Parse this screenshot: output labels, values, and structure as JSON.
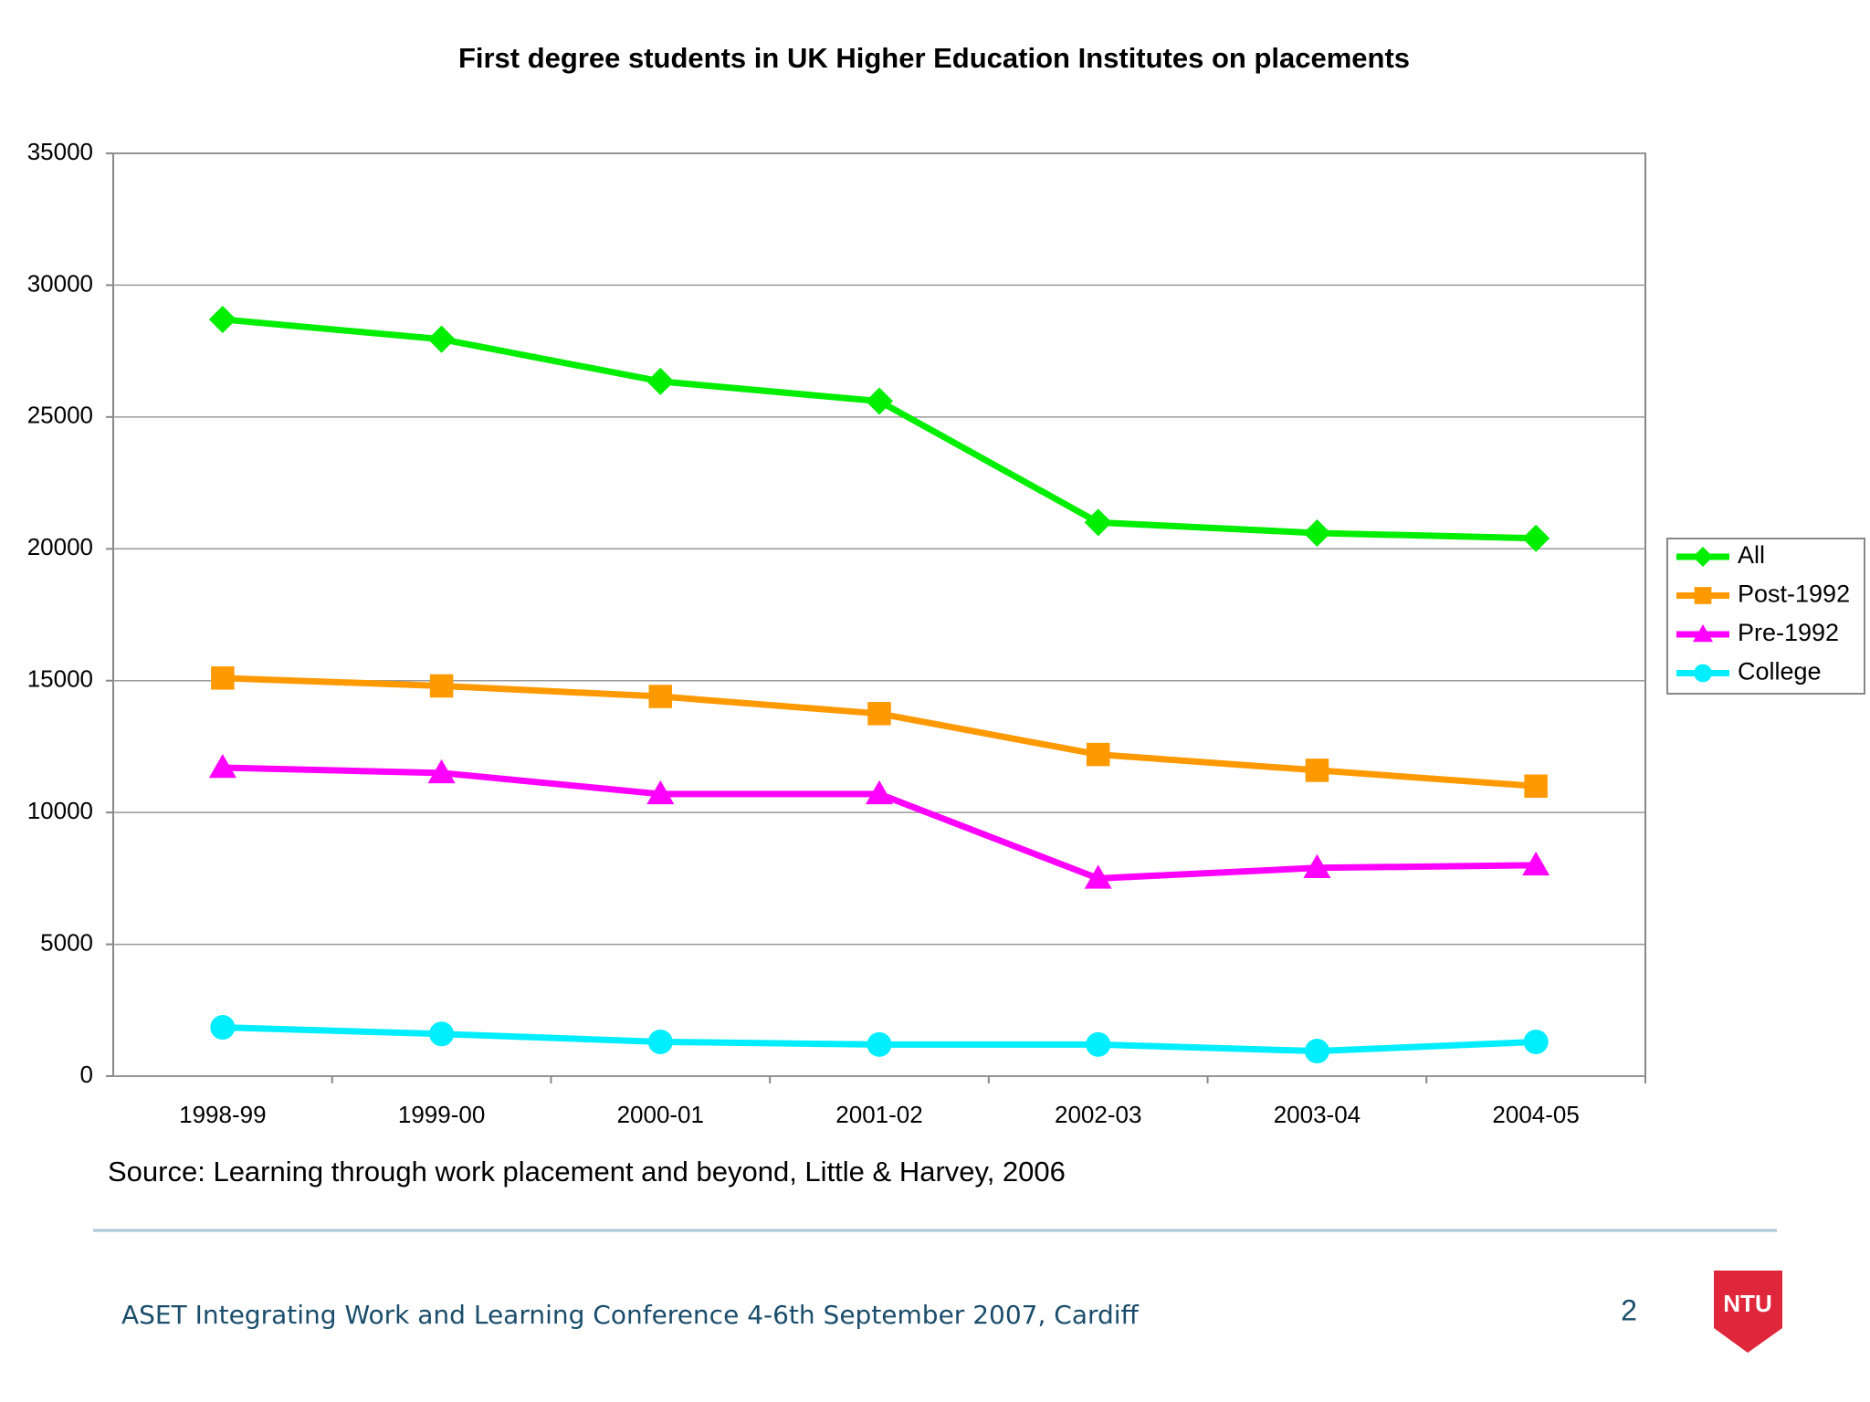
{
  "chart_data": {
    "type": "line",
    "title": "First degree students in UK Higher Education Institutes on placements",
    "categories": [
      "1998-99",
      "1999-00",
      "2000-01",
      "2001-02",
      "2002-03",
      "2003-04",
      "2004-05"
    ],
    "series": [
      {
        "name": "All",
        "color": "#00ee00",
        "marker": "diamond",
        "values": [
          28700,
          27950,
          26350,
          25600,
          21000,
          20600,
          20400
        ]
      },
      {
        "name": "Post-1992",
        "color": "#ff9900",
        "marker": "square",
        "values": [
          15100,
          14800,
          14400,
          13750,
          12200,
          11600,
          11000
        ]
      },
      {
        "name": "Pre-1992",
        "color": "#ff00ff",
        "marker": "triangle",
        "values": [
          11700,
          11500,
          10700,
          10700,
          7500,
          7900,
          8000
        ]
      },
      {
        "name": "College",
        "color": "#00eeff",
        "marker": "circle",
        "values": [
          1850,
          1600,
          1300,
          1200,
          1200,
          950,
          1300
        ]
      }
    ],
    "ylim": [
      0,
      35000
    ],
    "yticks": [
      0,
      5000,
      10000,
      15000,
      20000,
      25000,
      30000,
      35000
    ],
    "grid": true,
    "legend": "right"
  },
  "source": "Source: Learning through work placement and beyond, Little & Harvey, 2006",
  "footer": "ASET Integrating Work and Learning Conference 4-6th September 2007, Cardiff",
  "page_number": "2",
  "logo": "NTU"
}
